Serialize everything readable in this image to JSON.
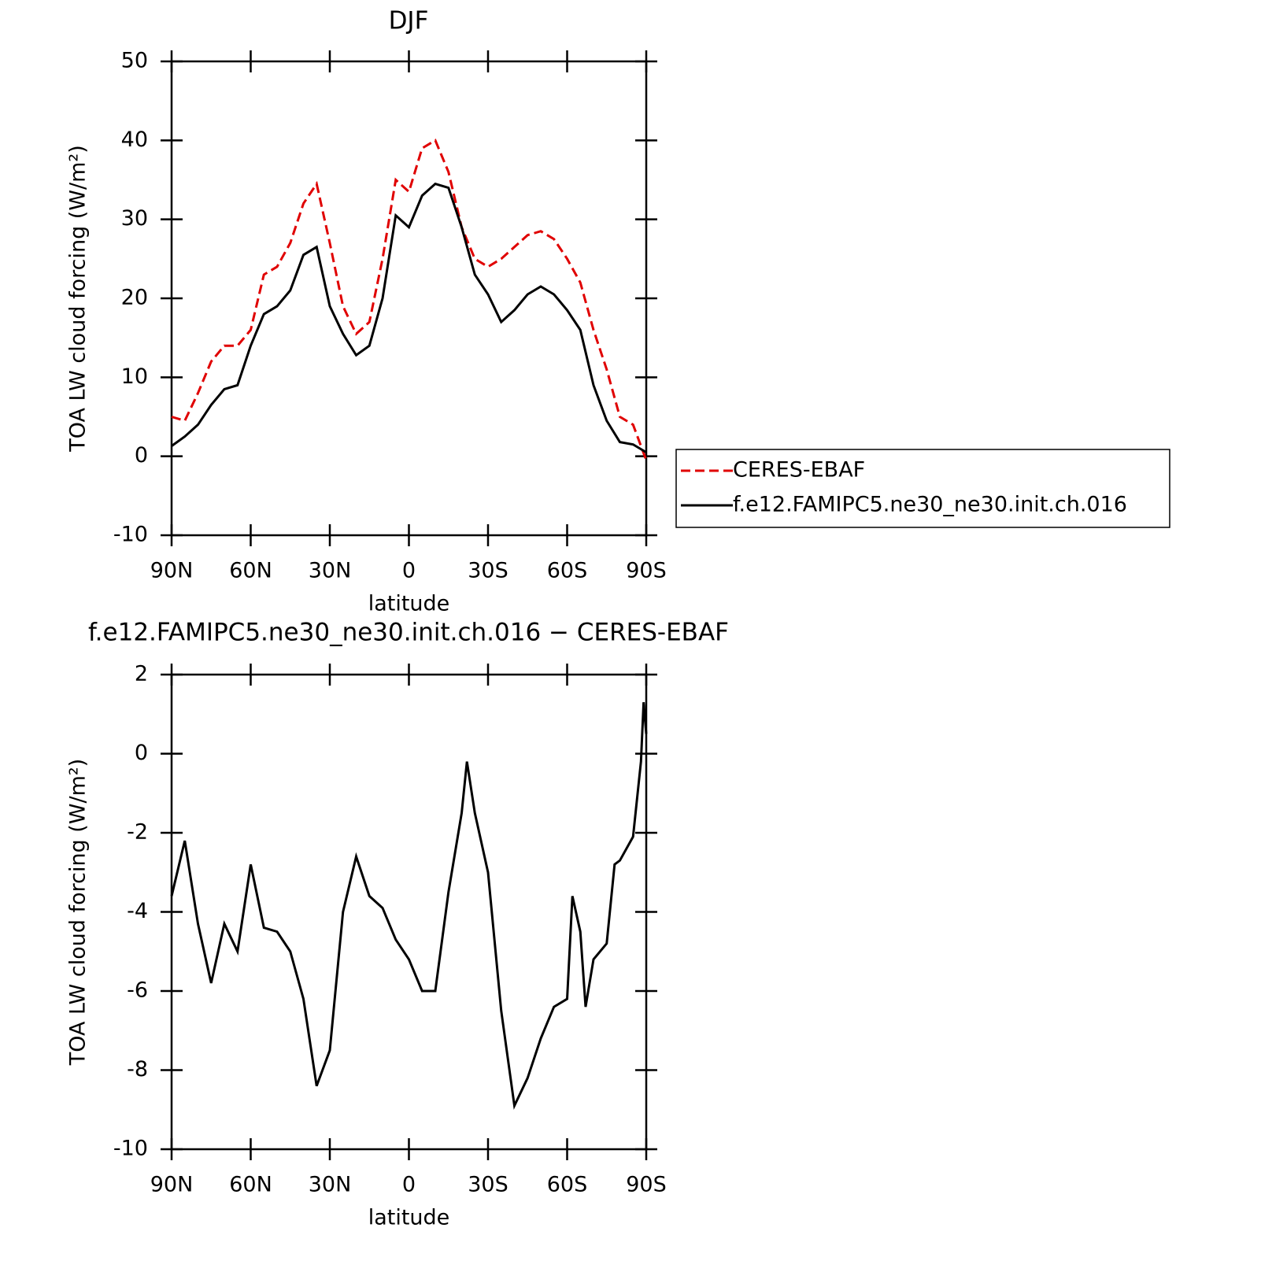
{
  "chart_data": [
    {
      "type": "line",
      "title": "DJF",
      "xlabel": "latitude",
      "ylabel": "TOA LW cloud forcing (W/m²)",
      "xlim": [
        90,
        -90
      ],
      "ylim": [
        -10,
        50
      ],
      "xticks": [
        {
          "value": 90,
          "label": "90N"
        },
        {
          "value": 60,
          "label": "60N"
        },
        {
          "value": 30,
          "label": "30N"
        },
        0,
        {
          "value": -30,
          "label": "30S"
        },
        {
          "value": -60,
          "label": "60S"
        },
        {
          "value": -90,
          "label": "90S"
        }
      ],
      "yticks": [
        -10,
        0,
        10,
        20,
        30,
        40,
        50
      ],
      "legend": "right",
      "x": [
        90,
        85,
        80,
        75,
        70,
        65,
        60,
        55,
        50,
        45,
        40,
        35,
        30,
        25,
        20,
        15,
        10,
        5,
        0,
        -5,
        -10,
        -15,
        -20,
        -25,
        -30,
        -35,
        -40,
        -45,
        -50,
        -55,
        -60,
        -65,
        -70,
        -75,
        -80,
        -85,
        -90
      ],
      "series": [
        {
          "name": "CERES-EBAF",
          "color": "#e00000",
          "dash": true,
          "values": [
            5,
            4.5,
            8,
            12,
            14,
            14,
            16,
            23,
            24,
            27,
            32,
            34.5,
            27,
            19,
            15.5,
            17,
            25,
            35,
            33.5,
            39,
            40,
            36,
            29,
            25,
            24,
            25,
            26.5,
            28,
            28.5,
            27.5,
            25,
            22,
            16,
            11,
            5,
            4,
            -0.5
          ]
        },
        {
          "name": "f.e12.FAMIPC5.ne30_ne30.init.ch.016",
          "color": "#000000",
          "dash": false,
          "values": [
            1.3,
            2.5,
            4,
            6.5,
            8.5,
            9,
            14,
            18,
            19,
            21,
            25.5,
            26.5,
            19,
            15.5,
            12.8,
            14,
            20,
            30.5,
            29,
            33,
            34.5,
            34,
            29,
            23,
            20.5,
            17,
            18.5,
            20.5,
            21.5,
            20.5,
            18.5,
            16,
            9,
            4.5,
            1.8,
            1.5,
            0.5
          ]
        }
      ]
    },
    {
      "type": "line",
      "title": "f.e12.FAMIPC5.ne30_ne30.init.ch.016 − CERES-EBAF",
      "xlabel": "latitude",
      "ylabel": "TOA LW cloud forcing (W/m²)",
      "xlim": [
        90,
        -90
      ],
      "ylim": [
        -10,
        2
      ],
      "xticks": [
        {
          "value": 90,
          "label": "90N"
        },
        {
          "value": 60,
          "label": "60N"
        },
        {
          "value": 30,
          "label": "30N"
        },
        0,
        {
          "value": -30,
          "label": "30S"
        },
        {
          "value": -60,
          "label": "60S"
        },
        {
          "value": -90,
          "label": "90S"
        }
      ],
      "yticks": [
        -10,
        -8,
        -6,
        -4,
        -2,
        0,
        2
      ],
      "x": [
        90,
        85,
        80,
        75,
        70,
        65,
        60,
        55,
        50,
        45,
        40,
        35,
        30,
        25,
        20,
        15,
        10,
        5,
        0,
        -5,
        -10,
        -15,
        -20,
        -22,
        -25,
        -30,
        -35,
        -40,
        -45,
        -50,
        -55,
        -60,
        -62,
        -65,
        -67,
        -70,
        -75,
        -78,
        -80,
        -85,
        -88,
        -89,
        -90
      ],
      "series": [
        {
          "name": null,
          "color": "#000000",
          "dash": false,
          "values": [
            -3.6,
            -2.2,
            -4.3,
            -5.8,
            -4.3,
            -5.0,
            -2.8,
            -4.4,
            -4.5,
            -5.0,
            -6.2,
            -8.4,
            -7.5,
            -4,
            -2.6,
            -3.6,
            -3.9,
            -4.7,
            -5.2,
            -6.0,
            -6.0,
            -3.5,
            -1.5,
            -0.2,
            -1.5,
            -3.0,
            -6.5,
            -8.9,
            -8.2,
            -7.2,
            -6.4,
            -6.2,
            -3.6,
            -4.5,
            -6.4,
            -5.2,
            -4.8,
            -2.8,
            -2.7,
            -2.1,
            -0.2,
            1.3,
            0.5
          ]
        }
      ]
    }
  ]
}
